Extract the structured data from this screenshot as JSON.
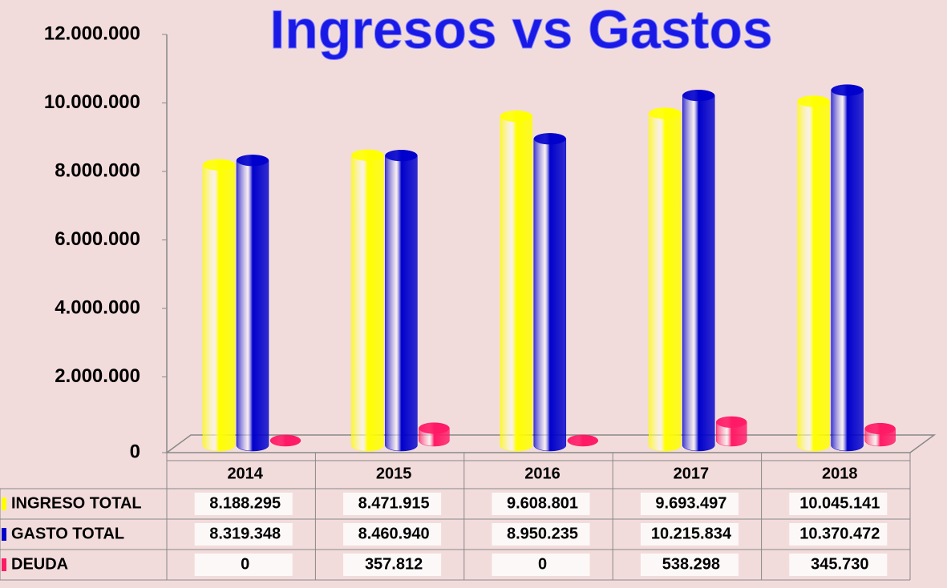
{
  "chart_data": {
    "type": "bar",
    "title": "Ingresos vs Gastos",
    "categories": [
      "2014",
      "2015",
      "2016",
      "2017",
      "2018"
    ],
    "series": [
      {
        "name": "INGRESO TOTAL",
        "color": "#ffff00",
        "values": [
          8188295,
          8471915,
          9608801,
          9693497,
          10045141
        ],
        "value_labels": [
          "8.188.295",
          "8.471.915",
          "9.608.801",
          "9.693.497",
          "10.045.141"
        ]
      },
      {
        "name": "GASTO TOTAL",
        "color": "#0000cc",
        "values": [
          8319348,
          8460940,
          8950235,
          10215834,
          10370472
        ],
        "value_labels": [
          "8.319.348",
          "8.460.940",
          "8.950.235",
          "10.215.834",
          "10.370.472"
        ]
      },
      {
        "name": "DEUDA",
        "color": "#ff1a66",
        "values": [
          0,
          357812,
          0,
          538298,
          345730
        ],
        "value_labels": [
          "0",
          "357.812",
          "0",
          "538.298",
          "345.730"
        ]
      }
    ],
    "ylim": [
      0,
      12000000
    ],
    "yticks": [
      0,
      {
        "value": 2000000,
        "label": "2.000.000"
      },
      {
        "value": 4000000,
        "label": "4.000.000"
      },
      {
        "value": 6000000,
        "label": "6.000.000"
      },
      {
        "value": 8000000,
        "label": "8.000.000"
      },
      {
        "value": 10000000,
        "label": "10.000.000"
      },
      {
        "value": 12000000,
        "label": "12.000.000"
      }
    ]
  }
}
